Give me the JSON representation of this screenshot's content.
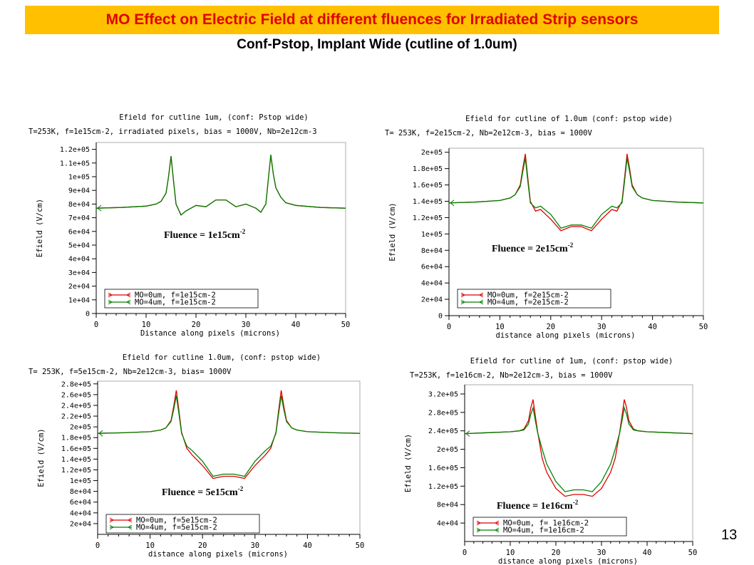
{
  "slide": {
    "title": "MO Effect on Electric Field at different fluences for Irradiated Strip sensors",
    "subtitle": "Conf-Pstop, Implant Wide (cutline of 1.0um)",
    "page_number": "13"
  },
  "colors": {
    "title_bg": "#ffc000",
    "title_text": "#e00000",
    "series_mo0": "#e00000",
    "series_mo4": "#008000"
  },
  "chart_data": [
    {
      "type": "line",
      "title": "Efield for cutline 1um, (conf: Pstop wide)",
      "subtitle": "T=253K, f=1e15cm-2, irradiated pixels, bias = 1000V, Nb=2e12cm-3",
      "xlabel": "Distance along pixels (microns)",
      "ylabel": "Efield (V/cm)",
      "annotation": "Fluence = 1e15cm",
      "annotation_exp": "-2",
      "xlim": [
        0,
        50
      ],
      "ylim": [
        0,
        125000
      ],
      "xticks": [
        "0",
        "10",
        "20",
        "30",
        "40",
        "50"
      ],
      "yticks": [
        {
          "v": 0,
          "l": "0"
        },
        {
          "v": 10000,
          "l": "1e+04"
        },
        {
          "v": 20000,
          "l": "2e+04"
        },
        {
          "v": 30000,
          "l": "3e+04"
        },
        {
          "v": 40000,
          "l": "4e+04"
        },
        {
          "v": 50000,
          "l": "5e+04"
        },
        {
          "v": 60000,
          "l": "6e+04"
        },
        {
          "v": 70000,
          "l": "7e+04"
        },
        {
          "v": 80000,
          "l": "8e+04"
        },
        {
          "v": 90000,
          "l": "9e+04"
        },
        {
          "v": 100000,
          "l": "1e+05"
        },
        {
          "v": 110000,
          "l": "1.1e+05"
        },
        {
          "v": 120000,
          "l": "1.2e+05"
        }
      ],
      "legend_position": "bottom-left",
      "series": [
        {
          "name": "MO=0um, f=1e15cm-2",
          "x": [
            0,
            5,
            10,
            12,
            13,
            14,
            14.5,
            15,
            15.5,
            16,
            17,
            18,
            20,
            22,
            24,
            26,
            28,
            30,
            32,
            33,
            34,
            34.5,
            35,
            35.5,
            36,
            37,
            38,
            40,
            45,
            50
          ],
          "values": [
            77000,
            77500,
            78500,
            80000,
            82000,
            88000,
            100000,
            115000,
            97000,
            80000,
            72000,
            75000,
            79000,
            78000,
            83000,
            83000,
            78000,
            80000,
            77000,
            74000,
            80000,
            98000,
            116000,
            102000,
            92000,
            85000,
            81000,
            79000,
            77500,
            77000
          ]
        },
        {
          "name": "MO=4um, f=1e15cm-2",
          "x": [
            0,
            5,
            10,
            12,
            13,
            14,
            14.5,
            15,
            15.5,
            16,
            17,
            18,
            20,
            22,
            24,
            26,
            28,
            30,
            32,
            33,
            34,
            34.5,
            35,
            35.5,
            36,
            37,
            38,
            40,
            45,
            50
          ],
          "values": [
            77000,
            77500,
            78500,
            80000,
            82000,
            88000,
            100000,
            115000,
            97000,
            80000,
            72000,
            75000,
            79000,
            78000,
            83000,
            83000,
            78000,
            80000,
            77000,
            74000,
            80000,
            98000,
            116000,
            102000,
            92000,
            85000,
            81000,
            79000,
            77500,
            77000
          ]
        }
      ]
    },
    {
      "type": "line",
      "title": "Efield for cutline of 1.0um (conf: pstop wide)",
      "subtitle": "T= 253K, f=2e15cm-2, Nb=2e12cm-3, bias = 1000V",
      "xlabel": "distance along pixels (microns)",
      "ylabel": "Efield (V/cm)",
      "annotation": "Fluence = 2e15cm",
      "annotation_exp": "-2",
      "xlim": [
        0,
        50
      ],
      "ylim": [
        0,
        205000
      ],
      "xticks": [
        "0",
        "10",
        "20",
        "30",
        "40",
        "50"
      ],
      "yticks": [
        {
          "v": 0,
          "l": "0"
        },
        {
          "v": 20000,
          "l": "2e+04"
        },
        {
          "v": 40000,
          "l": "4e+04"
        },
        {
          "v": 60000,
          "l": "6e+04"
        },
        {
          "v": 80000,
          "l": "8e+04"
        },
        {
          "v": 100000,
          "l": "1e+05"
        },
        {
          "v": 120000,
          "l": "1.2e+05"
        },
        {
          "v": 140000,
          "l": "1.4e+05"
        },
        {
          "v": 160000,
          "l": "1.6e+05"
        },
        {
          "v": 180000,
          "l": "1.8e+05"
        },
        {
          "v": 200000,
          "l": "2e+05"
        }
      ],
      "legend_position": "bottom-left",
      "series": [
        {
          "name": "MO=0um, f=2e15cm-2",
          "x": [
            0,
            5,
            10,
            12,
            13,
            14,
            14.5,
            15,
            15.5,
            16,
            17,
            18,
            20,
            22,
            24,
            26,
            28,
            30,
            32,
            33,
            34,
            34.5,
            35,
            35.5,
            36,
            37,
            38,
            40,
            45,
            50
          ],
          "values": [
            138000,
            139000,
            141000,
            144000,
            148000,
            160000,
            180000,
            198000,
            168000,
            140000,
            128000,
            130000,
            118000,
            104000,
            109000,
            109000,
            104000,
            118000,
            130000,
            128000,
            140000,
            168000,
            198000,
            180000,
            160000,
            148000,
            144000,
            141000,
            139000,
            138000
          ]
        },
        {
          "name": "MO=4um, f=2e15cm-2",
          "x": [
            0,
            5,
            10,
            12,
            13,
            14,
            14.5,
            15,
            15.5,
            16,
            17,
            18,
            20,
            22,
            24,
            26,
            28,
            30,
            32,
            33,
            34,
            34.5,
            35,
            35.5,
            36,
            37,
            38,
            40,
            45,
            50
          ],
          "values": [
            138000,
            139000,
            141000,
            144000,
            148000,
            158000,
            176000,
            193000,
            164000,
            138000,
            132000,
            134000,
            124000,
            107000,
            111000,
            111000,
            107000,
            124000,
            134000,
            132000,
            138000,
            164000,
            193000,
            176000,
            158000,
            148000,
            144000,
            141000,
            139000,
            138000
          ]
        }
      ]
    },
    {
      "type": "line",
      "title": "Efield for cutline 1.0um, (conf: pstop wide)",
      "subtitle": "T= 253K, f=5e15cm-2, Nb=2e12cm-3, bias= 1000V",
      "xlabel": "distance along pixels (microns)",
      "ylabel": "Efield (V/cm)",
      "annotation": "Fluence = 5e15cm",
      "annotation_exp": "-2",
      "xlim": [
        0,
        50
      ],
      "ylim": [
        0,
        285000
      ],
      "xticks": [
        "0",
        "10",
        "20",
        "30",
        "40",
        "50"
      ],
      "yticks": [
        {
          "v": 20000,
          "l": "2e+04"
        },
        {
          "v": 40000,
          "l": "4e+04"
        },
        {
          "v": 60000,
          "l": "6e+04"
        },
        {
          "v": 80000,
          "l": "8e+04"
        },
        {
          "v": 100000,
          "l": "1e+05"
        },
        {
          "v": 120000,
          "l": "1.2e+05"
        },
        {
          "v": 140000,
          "l": "1.4e+05"
        },
        {
          "v": 160000,
          "l": "1.6e+05"
        },
        {
          "v": 180000,
          "l": "1.8e+05"
        },
        {
          "v": 200000,
          "l": "2e+05"
        },
        {
          "v": 220000,
          "l": "2.2e+05"
        },
        {
          "v": 240000,
          "l": "2.4e+05"
        },
        {
          "v": 260000,
          "l": "2.6e+05"
        },
        {
          "v": 280000,
          "l": "2.8e+05"
        }
      ],
      "legend_position": "bottom-left",
      "series": [
        {
          "name": "MO=0um, f=5e15cm-2",
          "x": [
            0,
            5,
            10,
            12,
            13,
            14,
            14.5,
            15,
            15.5,
            16,
            17,
            18,
            20,
            22,
            24,
            26,
            28,
            30,
            32,
            33,
            34,
            34.5,
            35,
            35.5,
            36,
            37,
            38,
            40,
            45,
            50
          ],
          "values": [
            188000,
            189000,
            191000,
            194000,
            198000,
            212000,
            238000,
            268000,
            230000,
            190000,
            160000,
            148000,
            128000,
            104000,
            108000,
            108000,
            104000,
            128000,
            148000,
            160000,
            190000,
            230000,
            268000,
            238000,
            212000,
            198000,
            194000,
            191000,
            189000,
            188000
          ]
        },
        {
          "name": "MO=4um, f=5e15cm-2",
          "x": [
            0,
            5,
            10,
            12,
            13,
            14,
            14.5,
            15,
            15.5,
            16,
            17,
            18,
            20,
            22,
            24,
            26,
            28,
            30,
            32,
            33,
            34,
            34.5,
            35,
            35.5,
            36,
            37,
            38,
            40,
            45,
            50
          ],
          "values": [
            188000,
            189000,
            191000,
            194000,
            198000,
            210000,
            232000,
            258000,
            224000,
            188000,
            164000,
            156000,
            136000,
            108000,
            112000,
            112000,
            108000,
            136000,
            156000,
            164000,
            188000,
            224000,
            258000,
            232000,
            210000,
            198000,
            194000,
            191000,
            189000,
            188000
          ]
        }
      ]
    },
    {
      "type": "line",
      "title": "Efield for cutline of 1um, (conf: pstop wide)",
      "subtitle": "T=253K, f=1e16cm-2, Nb=2e12cm-3, bias = 1000V",
      "xlabel": "distance along pixels (microns)",
      "ylabel": "Efield (V/cm)",
      "annotation": "Fluence = 1e16cm",
      "annotation_exp": "-2",
      "xlim": [
        0,
        50
      ],
      "ylim": [
        0,
        340000
      ],
      "xticks": [
        "0",
        "10",
        "20",
        "30",
        "40",
        "50"
      ],
      "yticks": [
        {
          "v": 40000,
          "l": "4e+04"
        },
        {
          "v": 80000,
          "l": "8e+04"
        },
        {
          "v": 120000,
          "l": "1.2e+05"
        },
        {
          "v": 160000,
          "l": "1.6e+05"
        },
        {
          "v": 200000,
          "l": "2e+05"
        },
        {
          "v": 240000,
          "l": "2.4e+05"
        },
        {
          "v": 280000,
          "l": "2.8e+05"
        },
        {
          "v": 320000,
          "l": "3.2e+05"
        }
      ],
      "legend_position": "bottom-left",
      "series": [
        {
          "name": "MO=0um, f= 1e16cm-2",
          "x": [
            0,
            5,
            10,
            12,
            13,
            14,
            14.5,
            15,
            15.5,
            16,
            17,
            18,
            20,
            22,
            24,
            26,
            28,
            30,
            32,
            33,
            34,
            34.5,
            35,
            35.5,
            36,
            37,
            38,
            40,
            45,
            50
          ],
          "values": [
            234000,
            236000,
            238000,
            240000,
            244000,
            262000,
            290000,
            308000,
            272000,
            238000,
            180000,
            150000,
            115000,
            98000,
            102000,
            102000,
            98000,
            115000,
            150000,
            180000,
            238000,
            272000,
            308000,
            290000,
            262000,
            244000,
            240000,
            238000,
            236000,
            234000
          ]
        },
        {
          "name": "MO=4um, f=1e16cm-2",
          "x": [
            0,
            5,
            10,
            12,
            13,
            14,
            14.5,
            15,
            15.5,
            16,
            17,
            18,
            20,
            22,
            24,
            26,
            28,
            30,
            32,
            33,
            34,
            34.5,
            35,
            35.5,
            36,
            37,
            38,
            40,
            45,
            50
          ],
          "values": [
            234000,
            236000,
            238000,
            240000,
            242000,
            255000,
            276000,
            290000,
            262000,
            236000,
            200000,
            168000,
            130000,
            108000,
            112000,
            112000,
            108000,
            130000,
            168000,
            200000,
            236000,
            262000,
            290000,
            276000,
            255000,
            242000,
            240000,
            238000,
            236000,
            234000
          ]
        }
      ]
    }
  ]
}
